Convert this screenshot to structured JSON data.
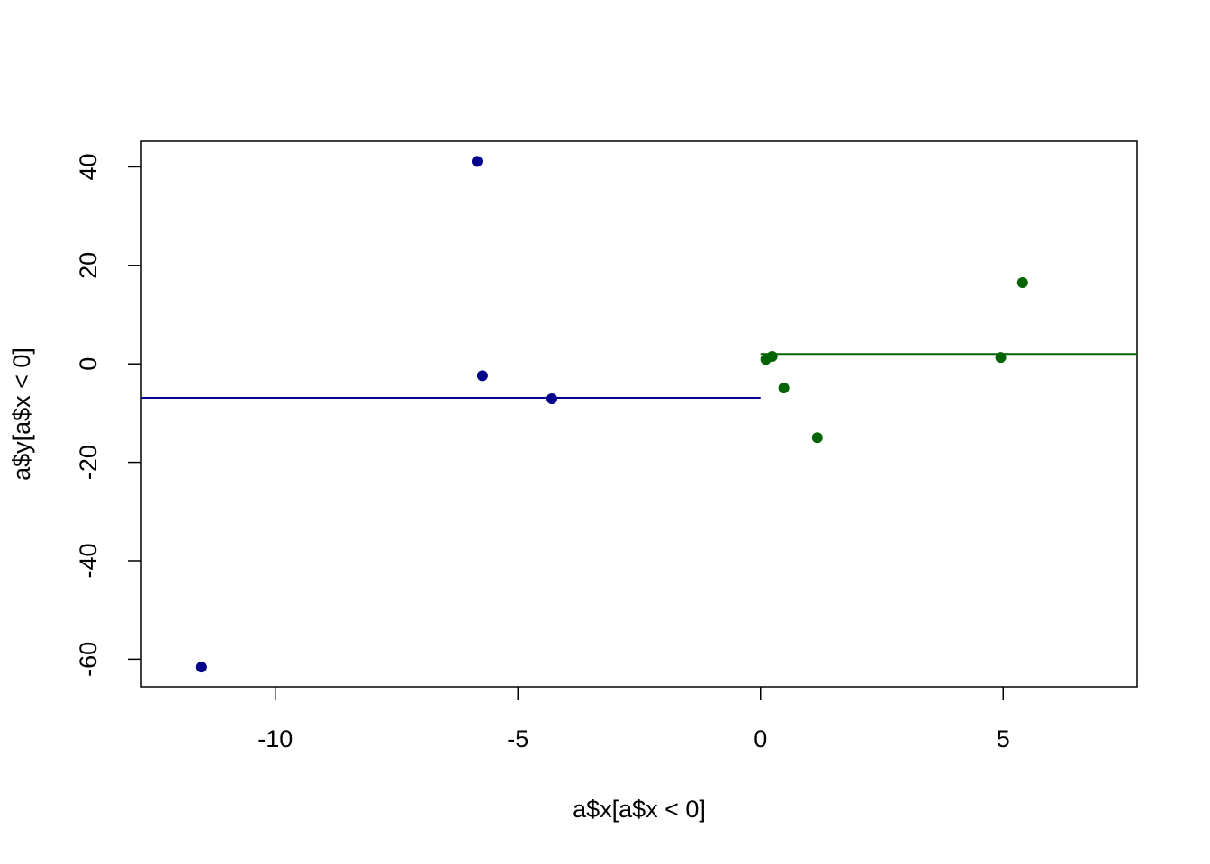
{
  "chart_data": {
    "type": "scatter",
    "xlabel": "a$x[a$x < 0]",
    "ylabel": "a$y[a$x < 0]",
    "xlim": [
      -12.76,
      7.76
    ],
    "ylim": [
      -65.6,
      45.2
    ],
    "xticks": [
      -10,
      -5,
      0,
      5
    ],
    "yticks": [
      -60,
      -40,
      -20,
      0,
      20,
      40
    ],
    "series": [
      {
        "color": "#00008b",
        "x": [
          -5.84,
          -5.73,
          -4.3,
          -11.52
        ],
        "values": [
          41.1,
          -2.4,
          -7.1,
          -61.6
        ]
      },
      {
        "color": "#006400",
        "x": [
          0.11,
          0.24,
          0.48,
          1.17,
          4.95,
          5.4
        ],
        "values": [
          0.9,
          1.5,
          -4.9,
          -15.0,
          1.3,
          16.5
        ]
      }
    ],
    "lines": [
      {
        "color": "#00008b",
        "x": [
          -12.76,
          0
        ],
        "values": [
          -6.9,
          -6.9
        ]
      },
      {
        "color": "#006400",
        "x": [
          0,
          7.76
        ],
        "values": [
          2.0,
          2.0
        ]
      }
    ]
  }
}
